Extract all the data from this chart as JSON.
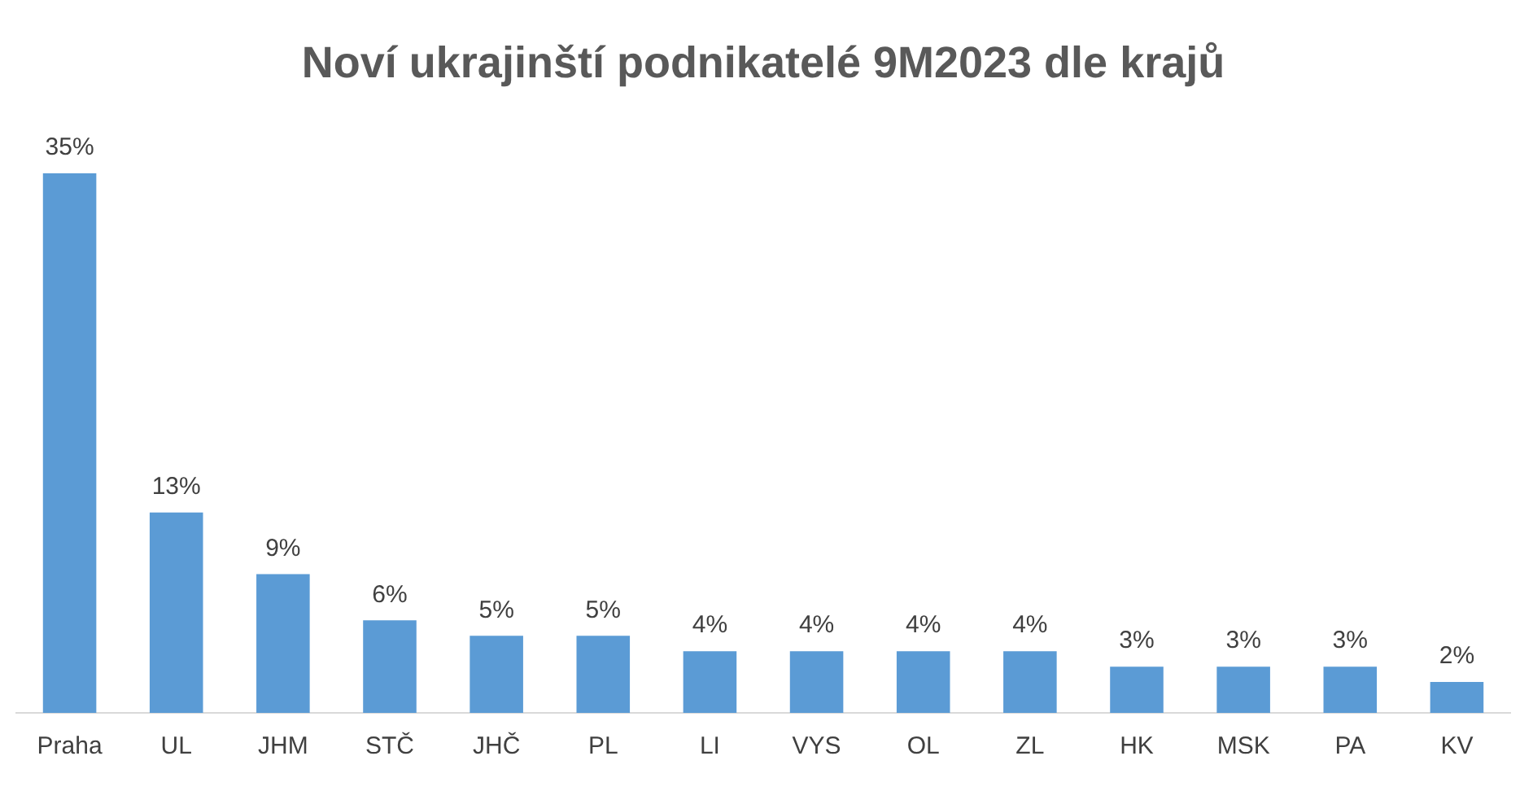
{
  "chart_data": {
    "type": "bar",
    "title": "Noví ukrajinští podnikatelé 9M2023 dle krajů",
    "categories": [
      "Praha",
      "UL",
      "JHM",
      "STČ",
      "JHČ",
      "PL",
      "LI",
      "VYS",
      "OL",
      "ZL",
      "HK",
      "MSK",
      "PA",
      "KV"
    ],
    "values": [
      35,
      13,
      9,
      6,
      5,
      5,
      4,
      4,
      4,
      4,
      3,
      3,
      3,
      2
    ],
    "value_labels": [
      "35%",
      "13%",
      "9%",
      "6%",
      "5%",
      "5%",
      "4%",
      "4%",
      "4%",
      "4%",
      "3%",
      "3%",
      "3%",
      "2%"
    ],
    "color": "#5b9bd5",
    "grid": false,
    "legend": false
  }
}
